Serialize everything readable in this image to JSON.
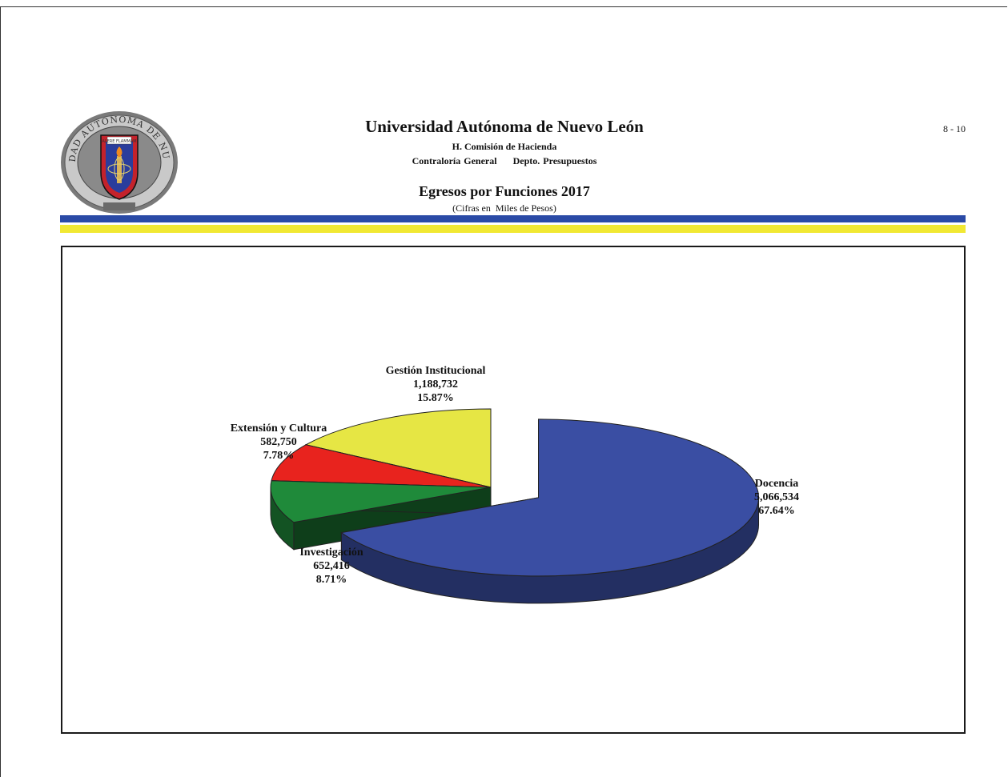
{
  "header": {
    "university": "Universidad Autónoma de Nuevo León",
    "commission": "H. Comisión de Hacienda",
    "departments": "Contraloría General     Depto. Presupuestos",
    "page_number": "8 - 10",
    "seal_text": "UNIVERSIDAD AUTONOMA DE NUEVO LEON",
    "seal_motto": "ALERE FLAMMAM VERITATIS"
  },
  "colors": {
    "rule_blue": "#2a4aa6",
    "rule_yellow": "#f1e833"
  },
  "chart_data": {
    "type": "pie",
    "title": "Egresos por Funciones 2017",
    "subtitle": "(Cifras en  Miles de Pesos)",
    "slices": [
      {
        "name": "Docencia",
        "value_label": "5,066,534",
        "value": 5066534,
        "percent": 67.64,
        "percent_label": "67.64%",
        "color": "#3a4ea3",
        "exploded": true
      },
      {
        "name": "Investigación",
        "value_label": "652,416",
        "value": 652416,
        "percent": 8.71,
        "percent_label": "8.71%",
        "color": "#1f8a3a",
        "exploded": false
      },
      {
        "name": "Extensión y Cultura",
        "value_label": "582,750",
        "value": 582750,
        "percent": 7.78,
        "percent_label": "7.78%",
        "color": "#e8231e",
        "exploded": false
      },
      {
        "name": "Gestión Institucional",
        "value_label": "1,188,732",
        "value": 1188732,
        "percent": 15.87,
        "percent_label": "15.87%",
        "color": "#e6e644",
        "exploded": false
      }
    ],
    "style": "3d"
  }
}
